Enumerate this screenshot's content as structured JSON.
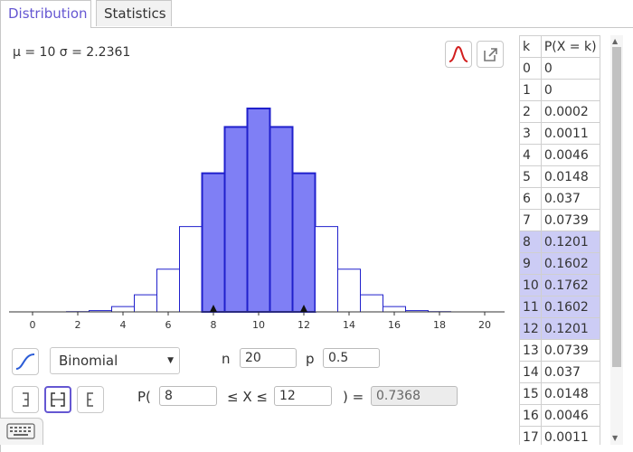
{
  "tabs": [
    {
      "label": "Distribution"
    },
    {
      "label": "Statistics"
    }
  ],
  "stats_line": "μ = 10 σ = 2.2361",
  "distribution": {
    "selected": "Binomial"
  },
  "params": {
    "n_label": "n",
    "n_value": "20",
    "p_label": "p",
    "p_value": "0.5"
  },
  "probability": {
    "prefix": "P(",
    "lower": "8",
    "middle": "≤ X ≤",
    "upper": "12",
    "suffix": ") =",
    "result": "0.7368"
  },
  "table": {
    "headers": [
      "k",
      "P(X = k)"
    ],
    "rows": [
      {
        "k": "0",
        "p": "0"
      },
      {
        "k": "1",
        "p": "0"
      },
      {
        "k": "2",
        "p": "0.0002"
      },
      {
        "k": "3",
        "p": "0.0011"
      },
      {
        "k": "4",
        "p": "0.0046"
      },
      {
        "k": "5",
        "p": "0.0148"
      },
      {
        "k": "6",
        "p": "0.037"
      },
      {
        "k": "7",
        "p": "0.0739"
      },
      {
        "k": "8",
        "p": "0.1201"
      },
      {
        "k": "9",
        "p": "0.1602"
      },
      {
        "k": "10",
        "p": "0.1762"
      },
      {
        "k": "11",
        "p": "0.1602"
      },
      {
        "k": "12",
        "p": "0.1201"
      },
      {
        "k": "13",
        "p": "0.0739"
      },
      {
        "k": "14",
        "p": "0.037"
      },
      {
        "k": "15",
        "p": "0.0148"
      },
      {
        "k": "16",
        "p": "0.0046"
      },
      {
        "k": "17",
        "p": "0.0011"
      }
    ],
    "highlighted_k": [
      8,
      9,
      10,
      11,
      12
    ]
  },
  "chart_data": {
    "type": "bar",
    "x": [
      0,
      1,
      2,
      3,
      4,
      5,
      6,
      7,
      8,
      9,
      10,
      11,
      12,
      13,
      14,
      15,
      16,
      17,
      18,
      19,
      20
    ],
    "values": [
      0,
      0,
      0.0002,
      0.0011,
      0.0046,
      0.0148,
      0.037,
      0.0739,
      0.1201,
      0.1602,
      0.1762,
      0.1602,
      0.1201,
      0.0739,
      0.037,
      0.0148,
      0.0046,
      0.0011,
      0.0002,
      0,
      0
    ],
    "highlight_range": [
      8,
      12
    ],
    "xticks": [
      0,
      2,
      4,
      6,
      8,
      10,
      12,
      14,
      16,
      18,
      20
    ],
    "xlim": [
      -1,
      21
    ],
    "ylim": [
      0,
      0.1762
    ],
    "colors": {
      "highlight": "#7f7ff5",
      "border": "#2020cc",
      "bar_fill": "#ffffff"
    }
  },
  "icons": {
    "curve": "normal-curve-icon",
    "export": "export-icon",
    "cumulative": "cumulative-icon",
    "left_sided": "left-sided-icon",
    "interval": "interval-icon",
    "right_sided": "right-sided-icon",
    "keyboard": "keyboard-icon"
  }
}
